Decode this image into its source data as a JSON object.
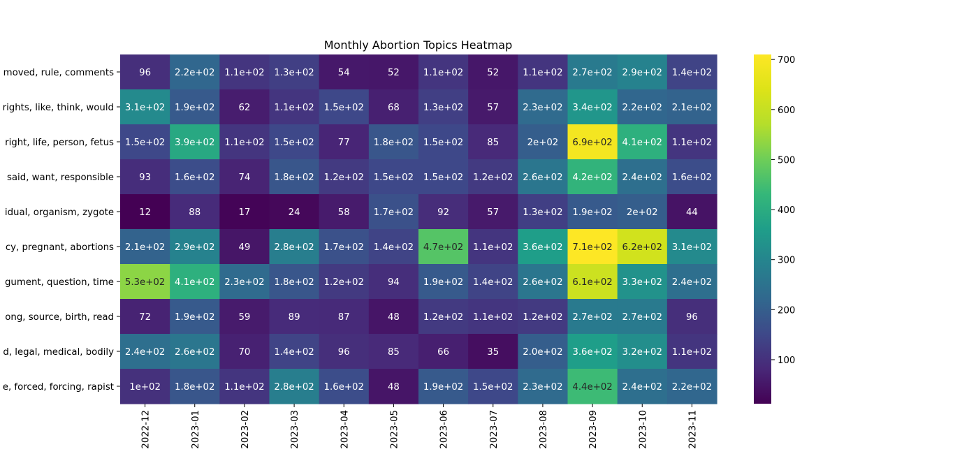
{
  "chart_data": {
    "type": "heatmap",
    "title": "Monthly Abortion Topics Heatmap",
    "xlabel": "",
    "ylabel": "",
    "x_categories": [
      "2022-12",
      "2023-01",
      "2023-02",
      "2023-03",
      "2023-04",
      "2023-05",
      "2023-06",
      "2023-07",
      "2023-08",
      "2023-09",
      "2023-10",
      "2023-11"
    ],
    "y_categories": [
      "moved, rule, comments",
      "rights, like, think, would",
      "right, life, person, fetus",
      "said, want, responsible",
      "idual, organism, zygote",
      "cy, pregnant, abortions",
      "gument, question, time",
      "ong, source, birth, read",
      "d, legal, medical, bodily",
      "e, forced, forcing, rapist"
    ],
    "values": [
      [
        96,
        220,
        110,
        130,
        54,
        52,
        110,
        52,
        110,
        270,
        290,
        140
      ],
      [
        310,
        190,
        62,
        110,
        150,
        68,
        130,
        57,
        230,
        340,
        220,
        210
      ],
      [
        150,
        390,
        110,
        150,
        77,
        180,
        150,
        85,
        200,
        690,
        410,
        110
      ],
      [
        93,
        160,
        74,
        180,
        120,
        150,
        150,
        120,
        260,
        420,
        240,
        160
      ],
      [
        12,
        88,
        17,
        24,
        58,
        170,
        92,
        57,
        130,
        190,
        200,
        44
      ],
      [
        210,
        290,
        49,
        280,
        170,
        140,
        470,
        110,
        360,
        710,
        620,
        310
      ],
      [
        530,
        410,
        230,
        180,
        120,
        94,
        190,
        140,
        260,
        610,
        330,
        240
      ],
      [
        72,
        190,
        59,
        89,
        87,
        48,
        120,
        110,
        120,
        270,
        270,
        96
      ],
      [
        240,
        260,
        70,
        140,
        96,
        85,
        66,
        35,
        200,
        360,
        320,
        110
      ],
      [
        100,
        180,
        110,
        280,
        160,
        48,
        190,
        150,
        230,
        440,
        240,
        220
      ]
    ],
    "annotations": [
      [
        "96",
        "2.2e+02",
        "1.1e+02",
        "1.3e+02",
        "54",
        "52",
        "1.1e+02",
        "52",
        "1.1e+02",
        "2.7e+02",
        "2.9e+02",
        "1.4e+02"
      ],
      [
        "3.1e+02",
        "1.9e+02",
        "62",
        "1.1e+02",
        "1.5e+02",
        "68",
        "1.3e+02",
        "57",
        "2.3e+02",
        "3.4e+02",
        "2.2e+02",
        "2.1e+02"
      ],
      [
        "1.5e+02",
        "3.9e+02",
        "1.1e+02",
        "1.5e+02",
        "77",
        "1.8e+02",
        "1.5e+02",
        "85",
        "2e+02",
        "6.9e+02",
        "4.1e+02",
        "1.1e+02"
      ],
      [
        "93",
        "1.6e+02",
        "74",
        "1.8e+02",
        "1.2e+02",
        "1.5e+02",
        "1.5e+02",
        "1.2e+02",
        "2.6e+02",
        "4.2e+02",
        "2.4e+02",
        "1.6e+02"
      ],
      [
        "12",
        "88",
        "17",
        "24",
        "58",
        "1.7e+02",
        "92",
        "57",
        "1.3e+02",
        "1.9e+02",
        "2e+02",
        "44"
      ],
      [
        "2.1e+02",
        "2.9e+02",
        "49",
        "2.8e+02",
        "1.7e+02",
        "1.4e+02",
        "4.7e+02",
        "1.1e+02",
        "3.6e+02",
        "7.1e+02",
        "6.2e+02",
        "3.1e+02"
      ],
      [
        "5.3e+02",
        "4.1e+02",
        "2.3e+02",
        "1.8e+02",
        "1.2e+02",
        "94",
        "1.9e+02",
        "1.4e+02",
        "2.6e+02",
        "6.1e+02",
        "3.3e+02",
        "2.4e+02"
      ],
      [
        "72",
        "1.9e+02",
        "59",
        "89",
        "87",
        "48",
        "1.2e+02",
        "1.1e+02",
        "1.2e+02",
        "2.7e+02",
        "2.7e+02",
        "96"
      ],
      [
        "2.4e+02",
        "2.6e+02",
        "70",
        "1.4e+02",
        "96",
        "85",
        "66",
        "35",
        "2.0e+02",
        "3.6e+02",
        "3.2e+02",
        "1.1e+02"
      ],
      [
        "1e+02",
        "1.8e+02",
        "1.1e+02",
        "2.8e+02",
        "1.6e+02",
        "48",
        "1.9e+02",
        "1.5e+02",
        "2.3e+02",
        "4.4e+02",
        "2.4e+02",
        "2.2e+02"
      ]
    ],
    "colormap": "viridis",
    "vmin": 12,
    "vmax": 710,
    "colorbar_ticks": [
      100,
      200,
      300,
      400,
      500,
      600,
      700
    ],
    "colorbar_tick_labels": [
      "100",
      "200",
      "300",
      "400",
      "500",
      "600",
      "700"
    ]
  }
}
